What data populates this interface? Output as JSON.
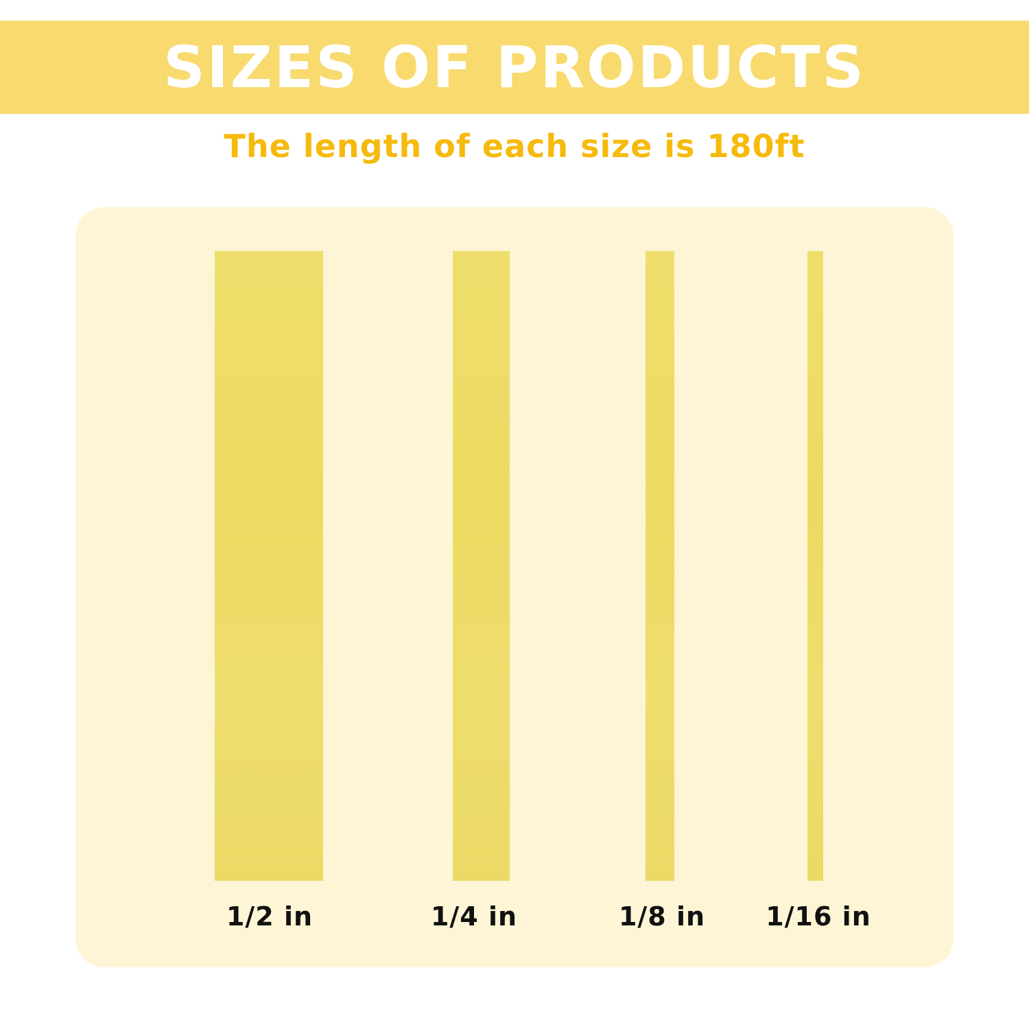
{
  "header": {
    "title": "SIZES OF PRODUCTS",
    "subtitle": "The length of each size is 180ft"
  },
  "colors": {
    "banner": "#F8DA6E",
    "subtitle": "#F6BA0C",
    "panel": "#FDF5D5",
    "strip": "#EEDD69"
  },
  "sizes": [
    {
      "label": "1/2 in"
    },
    {
      "label": "1/4 in"
    },
    {
      "label": "1/8 in"
    },
    {
      "label": "1/16 in"
    }
  ]
}
